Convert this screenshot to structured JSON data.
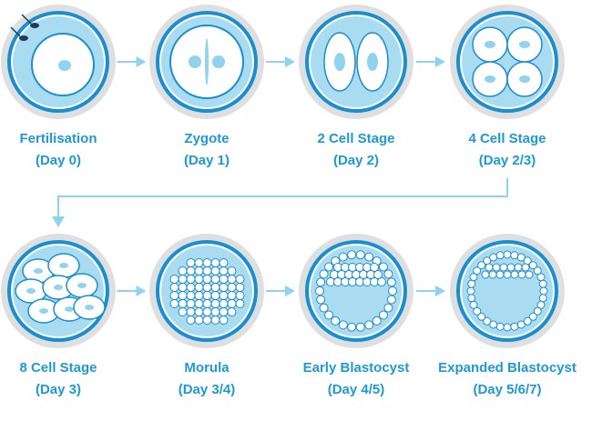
{
  "stages": [
    {
      "name": "Fertilisation",
      "day": "(Day 0)"
    },
    {
      "name": "Zygote",
      "day": "(Day 1)"
    },
    {
      "name": "2 Cell Stage",
      "day": "(Day 2)"
    },
    {
      "name": "4 Cell Stage",
      "day": "(Day 2/3)"
    },
    {
      "name": "8 Cell Stage",
      "day": "(Day 3)"
    },
    {
      "name": "Morula",
      "day": "(Day 3/4)"
    },
    {
      "name": "Early Blastocyst",
      "day": "(Day 4/5)"
    },
    {
      "name": "Expanded Blastocyst",
      "day": "(Day 5/6/7)"
    }
  ]
}
